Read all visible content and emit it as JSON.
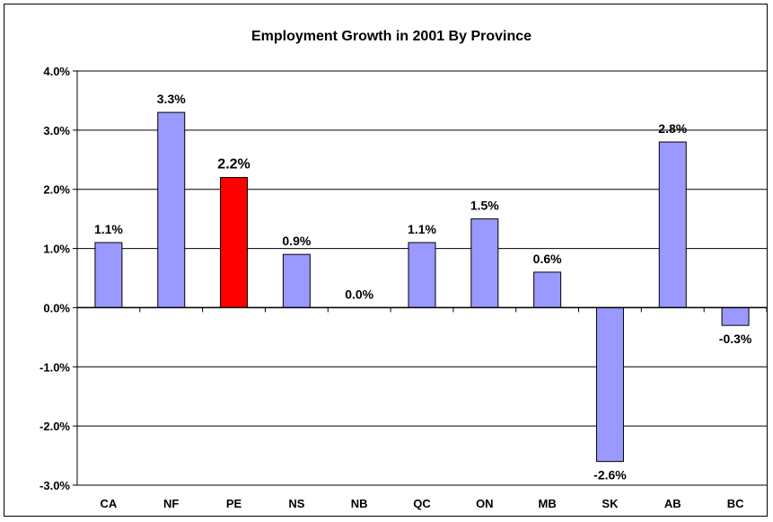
{
  "chart_data": {
    "type": "bar",
    "title": "Employment Growth in 2001 By Province",
    "xlabel": "",
    "ylabel": "",
    "categories": [
      "CA",
      "NF",
      "PE",
      "NS",
      "NB",
      "QC",
      "ON",
      "MB",
      "SK",
      "AB",
      "BC"
    ],
    "values": [
      1.1,
      3.3,
      2.2,
      0.9,
      0.0,
      1.1,
      1.5,
      0.6,
      -2.6,
      2.8,
      -0.3
    ],
    "data_labels": [
      "1.1%",
      "3.3%",
      "2.2%",
      "0.9%",
      "0.0%",
      "1.1%",
      "1.5%",
      "0.6%",
      "-2.6%",
      "2.8%",
      "-0.3%"
    ],
    "y_ticks": [
      4.0,
      3.0,
      2.0,
      1.0,
      0.0,
      -1.0,
      -2.0,
      -3.0
    ],
    "y_tick_labels": [
      "4.0%",
      "3.0%",
      "2.0%",
      "1.0%",
      "0.0%",
      "-1.0%",
      "-2.0%",
      "-3.0%"
    ],
    "ylim": [
      -3.0,
      4.0
    ],
    "grid": "horizontal",
    "legend": "none",
    "bar_color": "#9999ff",
    "highlight_category": "PE",
    "highlight_color": "#ff0000"
  }
}
